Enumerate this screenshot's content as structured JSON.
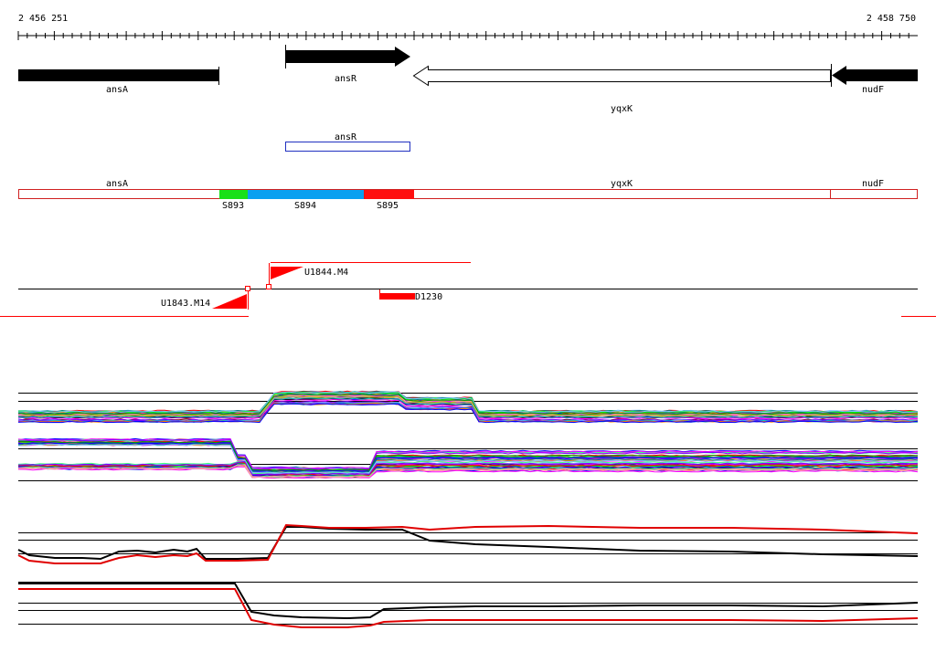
{
  "coords": {
    "start": "2 456 251",
    "end": "2 458 750"
  },
  "genes": [
    {
      "name": "ansA",
      "style": "filled",
      "dir": "none"
    },
    {
      "name": "ansR",
      "style": "filled",
      "dir": "right"
    },
    {
      "name": "yqxK",
      "style": "outline",
      "dir": "left"
    },
    {
      "name": "nudF",
      "style": "filled",
      "dir": "left"
    }
  ],
  "operon": {
    "label": "ansR",
    "color": "#2030c0"
  },
  "segments": {
    "labels": [
      "ansA",
      "yqxK",
      "nudF"
    ],
    "marks": [
      {
        "label": "S893",
        "color": "#18e018"
      },
      {
        "label": "S894",
        "color": "#0aa0f0"
      },
      {
        "label": "S895",
        "color": "#ff1010"
      }
    ]
  },
  "features": {
    "u1844": "U1844.M4",
    "u1843": "U1843.M14",
    "d1230": "D1230"
  },
  "colors": {
    "accent": "#ff0000",
    "outline": "#d02020"
  }
}
